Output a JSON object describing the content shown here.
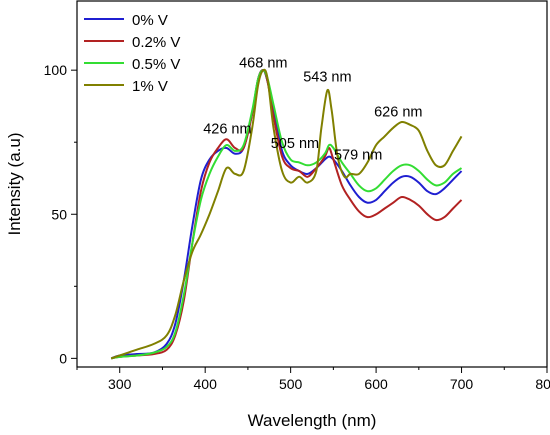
{
  "chart_data": {
    "type": "line",
    "title": "",
    "xlabel": "Wavelength (nm)",
    "ylabel": "Intensity (a.u)",
    "xlim": [
      250,
      800
    ],
    "ylim": [
      -3,
      124
    ],
    "xticks": [
      300,
      400,
      500,
      600,
      700,
      800
    ],
    "yticks": [
      0,
      50,
      100
    ],
    "grid": false,
    "legend": "top-left",
    "annotations": [
      {
        "text": "426 nm",
        "x": 426,
        "y": 78
      },
      {
        "text": "468 nm",
        "x": 468,
        "y": 101
      },
      {
        "text": "505 nm",
        "x": 505,
        "y": 73
      },
      {
        "text": "543 nm",
        "x": 543,
        "y": 96
      },
      {
        "text": "579 nm",
        "x": 579,
        "y": 69
      },
      {
        "text": "626 nm",
        "x": 626,
        "y": 84
      }
    ],
    "series": [
      {
        "name": "0% V",
        "color": "#1f1fd1",
        "x": [
          290,
          300,
          320,
          340,
          355,
          365,
          375,
          385,
          395,
          405,
          415,
          425,
          435,
          445,
          455,
          462,
          468,
          473,
          480,
          490,
          500,
          510,
          520,
          530,
          540,
          545,
          550,
          560,
          570,
          580,
          590,
          600,
          610,
          620,
          630,
          640,
          650,
          660,
          670,
          680,
          690,
          700
        ],
        "y": [
          0,
          1,
          1.5,
          2,
          5,
          12,
          27,
          46,
          62,
          69,
          72,
          73,
          71,
          73,
          85,
          97,
          100,
          96,
          86,
          72,
          67,
          65,
          64,
          66,
          69,
          70,
          69,
          65,
          60,
          56,
          54,
          55,
          58,
          61,
          63,
          63,
          61,
          58,
          57,
          59,
          62,
          65
        ]
      },
      {
        "name": "0.2% V",
        "color": "#b22222",
        "x": [
          290,
          300,
          320,
          340,
          355,
          365,
          375,
          385,
          395,
          405,
          415,
          425,
          435,
          445,
          455,
          462,
          468,
          473,
          480,
          490,
          500,
          510,
          520,
          530,
          540,
          545,
          550,
          560,
          570,
          580,
          590,
          600,
          610,
          620,
          630,
          640,
          650,
          660,
          670,
          680,
          690,
          700
        ],
        "y": [
          0,
          0.5,
          1,
          1.5,
          3,
          8,
          20,
          40,
          58,
          68,
          73,
          76,
          73,
          73,
          85,
          97,
          100,
          96,
          84,
          70,
          66,
          65,
          63,
          66,
          70,
          73,
          69,
          60,
          55,
          51,
          49,
          50,
          52,
          54,
          56,
          55,
          53,
          50,
          48,
          49,
          52,
          55
        ]
      },
      {
        "name": "0.5% V",
        "color": "#33dd33",
        "x": [
          290,
          300,
          320,
          340,
          355,
          365,
          375,
          385,
          395,
          405,
          415,
          425,
          435,
          445,
          455,
          462,
          468,
          473,
          480,
          490,
          500,
          510,
          520,
          530,
          540,
          545,
          550,
          560,
          570,
          580,
          590,
          600,
          610,
          620,
          630,
          640,
          650,
          660,
          670,
          680,
          690,
          700
        ],
        "y": [
          0,
          0.5,
          1,
          2,
          4,
          9,
          22,
          40,
          55,
          64,
          70,
          74,
          72,
          74,
          86,
          97,
          100,
          97,
          88,
          75,
          69,
          68,
          67,
          68,
          71,
          74,
          73,
          68,
          64,
          60,
          58,
          59,
          62,
          65,
          67,
          67,
          65,
          62,
          60,
          61,
          64,
          66
        ]
      },
      {
        "name": "1% V",
        "color": "#808000",
        "x": [
          290,
          300,
          320,
          340,
          355,
          365,
          375,
          385,
          395,
          405,
          415,
          425,
          435,
          445,
          455,
          462,
          468,
          473,
          480,
          490,
          500,
          510,
          520,
          530,
          536,
          543,
          548,
          555,
          563,
          570,
          580,
          590,
          600,
          610,
          620,
          630,
          640,
          650,
          660,
          670,
          680,
          690,
          700
        ],
        "y": [
          0,
          1,
          3,
          5,
          8,
          15,
          27,
          37,
          43,
          50,
          58,
          66,
          64,
          65,
          80,
          95,
          100,
          97,
          80,
          65,
          61,
          63,
          61,
          65,
          80,
          93,
          86,
          70,
          63,
          64,
          64,
          68,
          74,
          77,
          80,
          82,
          81,
          79,
          72,
          67,
          67,
          72,
          77
        ]
      }
    ]
  }
}
